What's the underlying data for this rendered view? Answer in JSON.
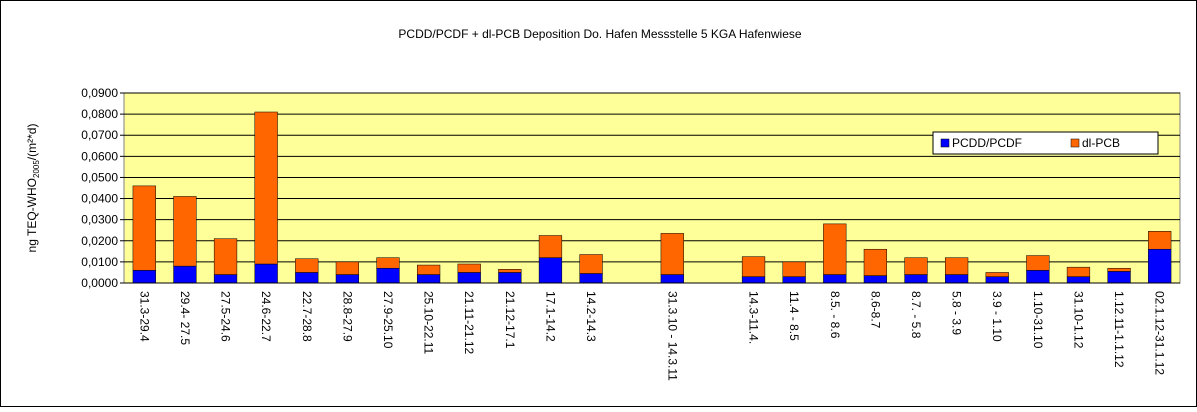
{
  "chart_data": {
    "type": "stacked_bar",
    "title": "PCDD/PCDF + dl-PCB  Deposition Do. Hafen Messstelle 5  KGA Hafenwiese",
    "y_label": {
      "main": "ng TEQ-WHO",
      "sub": "2005",
      "rest": "/(m²*d)"
    },
    "categories": [
      "31.3-29.4",
      "29.4- 27.5",
      "27.5-24.6",
      "24.6-22.7",
      "22.7-28.8",
      "28.8-27.9",
      "27.9-25.10",
      "25.10-22.11",
      "21.11-21.12",
      "21.12-17.1",
      "17.1-14.2",
      "14.2-14.3",
      null,
      "31.3.10 - 14.3.11",
      null,
      "14.3-11.4.",
      "11.4 - 8.5",
      "8.5. - 8.6",
      "8.6-8.7",
      "8.7. - 5.8",
      "5.8 - 3.9",
      "3.9 - 1.10",
      "1.10-31.10",
      "31.10-1.12",
      "1.12.11-1.1.12",
      "02.1.12-31.1.12"
    ],
    "series": [
      {
        "name": "PCDD/PCDF",
        "color": "#0000ff",
        "values": [
          0.006,
          0.008,
          0.004,
          0.009,
          0.005,
          0.004,
          0.007,
          0.004,
          0.005,
          0.005,
          0.012,
          0.0045,
          null,
          0.004,
          null,
          0.003,
          0.003,
          0.004,
          0.0035,
          0.004,
          0.004,
          0.003,
          0.006,
          0.003,
          0.0055,
          0.016
        ]
      },
      {
        "name": "dl-PCB",
        "color": "#ff6600",
        "values": [
          0.04,
          0.033,
          0.017,
          0.072,
          0.0065,
          0.006,
          0.005,
          0.0045,
          0.004,
          0.0015,
          0.0105,
          0.009,
          null,
          0.0195,
          null,
          0.0095,
          0.007,
          0.024,
          0.0125,
          0.008,
          0.008,
          0.002,
          0.007,
          0.0045,
          0.0015,
          0.0085
        ]
      }
    ],
    "ylim": [
      0,
      0.09
    ],
    "yticks": [
      {
        "value": 0,
        "label": "0,0000"
      },
      {
        "value": 0.01,
        "label": "0,0100"
      },
      {
        "value": 0.02,
        "label": "0,0200"
      },
      {
        "value": 0.03,
        "label": "0,0300"
      },
      {
        "value": 0.04,
        "label": "0,0400"
      },
      {
        "value": 0.05,
        "label": "0,0500"
      },
      {
        "value": 0.06,
        "label": "0,0600"
      },
      {
        "value": 0.07,
        "label": "0,0700"
      },
      {
        "value": 0.08,
        "label": "0,0800"
      },
      {
        "value": 0.09,
        "label": "0,0900"
      }
    ],
    "grid": true,
    "legend": "top-right",
    "background": "#ffff99"
  }
}
